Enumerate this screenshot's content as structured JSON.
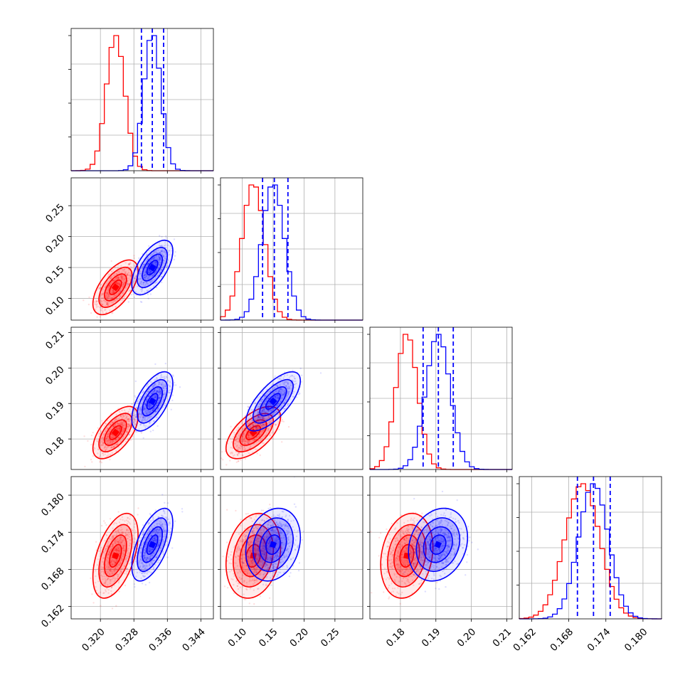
{
  "chart_data": {
    "type": "corner",
    "grid": true,
    "colors": {
      "red": "#ff0000",
      "blue": "#0000ff"
    },
    "parameters": [
      {
        "range": [
          0.313,
          0.347
        ],
        "ticks": [
          "0.320",
          "0.328",
          "0.336",
          "0.344"
        ],
        "red": {
          "mean": 0.3236,
          "sd": 0.0022
        },
        "blue": {
          "mean": 0.3324,
          "sd": 0.002
        },
        "quantiles": [
          0.3298,
          0.3324,
          0.3351
        ]
      },
      {
        "range": [
          0.065,
          0.295
        ],
        "ticks": [
          "0.10",
          "0.15",
          "0.20",
          "0.25"
        ],
        "red": {
          "mean": 0.118,
          "sd": 0.018
        },
        "blue": {
          "mean": 0.15,
          "sd": 0.018
        },
        "quantiles": [
          0.133,
          0.152,
          0.174
        ]
      },
      {
        "range": [
          0.1714,
          0.2115
        ],
        "ticks": [
          "0.18",
          "0.19",
          "0.20",
          "0.21"
        ],
        "red": {
          "mean": 0.1818,
          "sd": 0.003
        },
        "blue": {
          "mean": 0.1906,
          "sd": 0.0034
        },
        "quantiles": [
          0.1864,
          0.1907,
          0.1949
        ]
      },
      {
        "range": [
          0.16,
          0.183
        ],
        "ticks": [
          "0.162",
          "0.168",
          "0.174",
          "0.180"
        ],
        "red": {
          "mean": 0.1702,
          "sd": 0.0028
        },
        "blue": {
          "mean": 0.172,
          "sd": 0.0024
        },
        "quantiles": [
          0.1694,
          0.172,
          0.1747
        ]
      }
    ],
    "correlations": {
      "red": [
        [
          1,
          0.6,
          0.6,
          0.5
        ],
        [
          0.6,
          1,
          0.6,
          0.2
        ],
        [
          0.6,
          0.6,
          1,
          0.2
        ],
        [
          0.5,
          0.2,
          0.2,
          1
        ]
      ],
      "blue": [
        [
          1,
          0.6,
          0.6,
          0.6
        ],
        [
          0.6,
          1,
          0.7,
          0.2
        ],
        [
          0.6,
          0.7,
          1,
          0.2
        ],
        [
          0.6,
          0.2,
          0.2,
          1
        ]
      ]
    }
  }
}
